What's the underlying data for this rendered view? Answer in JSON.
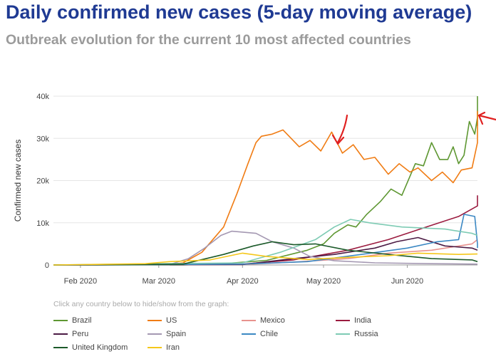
{
  "header": {
    "title": "Daily confirmed new cases (5-day moving average)",
    "subtitle": "Outbreak evolution for the current 10 most affected countries"
  },
  "hint": "Click any country below to hide/show from the graph:",
  "annotations": [
    "red-arrow-pointing-down",
    "red-arrow-pointing-left"
  ],
  "chart_data": {
    "type": "line",
    "title": "Daily confirmed new cases (5-day moving average)",
    "subtitle": "Outbreak evolution for the current 10 most affected countries",
    "xlabel": "",
    "ylabel": "Confirmed new cases",
    "x_ticks": [
      "Feb 2020",
      "Mar 2020",
      "Apr 2020",
      "May 2020",
      "Jun 2020"
    ],
    "y_ticks": [
      "0",
      "10k",
      "20k",
      "30k",
      "40k"
    ],
    "ylim": [
      0,
      40000
    ],
    "xlim": [
      "2020-01-22",
      "2020-06-27"
    ],
    "grid": true,
    "legend_position": "bottom",
    "series": [
      {
        "name": "Brazil",
        "color": "#5e9732",
        "points": [
          [
            "2020-01-22",
            0
          ],
          [
            "2020-03-10",
            0
          ],
          [
            "2020-03-25",
            300
          ],
          [
            "2020-04-10",
            1100
          ],
          [
            "2020-04-25",
            3500
          ],
          [
            "2020-05-01",
            5000
          ],
          [
            "2020-05-05",
            7500
          ],
          [
            "2020-05-10",
            9500
          ],
          [
            "2020-05-13",
            9000
          ],
          [
            "2020-05-17",
            12000
          ],
          [
            "2020-05-22",
            15000
          ],
          [
            "2020-05-26",
            18000
          ],
          [
            "2020-05-30",
            16500
          ],
          [
            "2020-06-04",
            24000
          ],
          [
            "2020-06-07",
            23500
          ],
          [
            "2020-06-10",
            29000
          ],
          [
            "2020-06-13",
            25000
          ],
          [
            "2020-06-16",
            25000
          ],
          [
            "2020-06-18",
            28000
          ],
          [
            "2020-06-20",
            24000
          ],
          [
            "2020-06-22",
            26000
          ],
          [
            "2020-06-24",
            34000
          ],
          [
            "2020-06-26",
            31000
          ],
          [
            "2020-06-28",
            35000
          ],
          [
            "2020-06-30",
            33000
          ],
          [
            "2020-07-02",
            40000
          ]
        ]
      },
      {
        "name": "US",
        "color": "#f07c14",
        "points": [
          [
            "2020-01-22",
            0
          ],
          [
            "2020-03-05",
            100
          ],
          [
            "2020-03-10",
            500
          ],
          [
            "2020-03-17",
            3000
          ],
          [
            "2020-03-25",
            9000
          ],
          [
            "2020-03-30",
            17000
          ],
          [
            "2020-04-03",
            24000
          ],
          [
            "2020-04-06",
            29000
          ],
          [
            "2020-04-08",
            30500
          ],
          [
            "2020-04-12",
            31000
          ],
          [
            "2020-04-16",
            32000
          ],
          [
            "2020-04-22",
            28000
          ],
          [
            "2020-04-26",
            29500
          ],
          [
            "2020-04-30",
            27000
          ],
          [
            "2020-05-04",
            31500
          ],
          [
            "2020-05-08",
            26500
          ],
          [
            "2020-05-12",
            28500
          ],
          [
            "2020-05-16",
            25000
          ],
          [
            "2020-05-20",
            25500
          ],
          [
            "2020-05-25",
            21500
          ],
          [
            "2020-05-29",
            24000
          ],
          [
            "2020-06-02",
            22000
          ],
          [
            "2020-06-05",
            23000
          ],
          [
            "2020-06-10",
            20000
          ],
          [
            "2020-06-14",
            22000
          ],
          [
            "2020-06-18",
            19500
          ],
          [
            "2020-06-21",
            22500
          ],
          [
            "2020-06-25",
            23000
          ],
          [
            "2020-06-28",
            29000
          ],
          [
            "2020-07-01",
            33000
          ],
          [
            "2020-07-03",
            36500
          ]
        ]
      },
      {
        "name": "Mexico",
        "color": "#e8928e",
        "points": [
          [
            "2020-01-22",
            0
          ],
          [
            "2020-04-01",
            100
          ],
          [
            "2020-04-20",
            700
          ],
          [
            "2020-05-10",
            1500
          ],
          [
            "2020-05-25",
            2800
          ],
          [
            "2020-06-10",
            3500
          ],
          [
            "2020-06-25",
            5000
          ],
          [
            "2020-07-03",
            6000
          ]
        ]
      },
      {
        "name": "India",
        "color": "#9b1b3f",
        "points": [
          [
            "2020-01-22",
            0
          ],
          [
            "2020-04-01",
            200
          ],
          [
            "2020-04-20",
            1200
          ],
          [
            "2020-05-10",
            3500
          ],
          [
            "2020-05-25",
            6000
          ],
          [
            "2020-06-08",
            9000
          ],
          [
            "2020-06-20",
            11500
          ],
          [
            "2020-06-28",
            14000
          ],
          [
            "2020-07-03",
            16500
          ]
        ]
      },
      {
        "name": "Peru",
        "color": "#4c1b44",
        "points": [
          [
            "2020-01-22",
            0
          ],
          [
            "2020-04-01",
            100
          ],
          [
            "2020-04-20",
            1500
          ],
          [
            "2020-05-05",
            2500
          ],
          [
            "2020-05-20",
            4000
          ],
          [
            "2020-05-28",
            5500
          ],
          [
            "2020-06-05",
            6500
          ],
          [
            "2020-06-15",
            4500
          ],
          [
            "2020-06-25",
            4000
          ],
          [
            "2020-07-03",
            3500
          ]
        ]
      },
      {
        "name": "Spain",
        "color": "#a498b2",
        "points": [
          [
            "2020-01-22",
            0
          ],
          [
            "2020-03-05",
            100
          ],
          [
            "2020-03-12",
            1500
          ],
          [
            "2020-03-18",
            4000
          ],
          [
            "2020-03-24",
            7000
          ],
          [
            "2020-03-28",
            8000
          ],
          [
            "2020-04-06",
            7500
          ],
          [
            "2020-04-12",
            5500
          ],
          [
            "2020-04-20",
            4000
          ],
          [
            "2020-04-26",
            2000
          ],
          [
            "2020-05-05",
            1000
          ],
          [
            "2020-05-20",
            500
          ],
          [
            "2020-06-10",
            300
          ],
          [
            "2020-07-03",
            200
          ]
        ]
      },
      {
        "name": "Chile",
        "color": "#3b88c3",
        "points": [
          [
            "2020-01-22",
            0
          ],
          [
            "2020-04-01",
            200
          ],
          [
            "2020-04-25",
            800
          ],
          [
            "2020-05-15",
            2500
          ],
          [
            "2020-06-01",
            4000
          ],
          [
            "2020-06-12",
            5500
          ],
          [
            "2020-06-20",
            6000
          ],
          [
            "2020-06-22",
            12000
          ],
          [
            "2020-06-26",
            11500
          ],
          [
            "2020-06-27",
            5000
          ],
          [
            "2020-07-03",
            4000
          ]
        ]
      },
      {
        "name": "Russia",
        "color": "#7ecbb4",
        "points": [
          [
            "2020-01-22",
            0
          ],
          [
            "2020-04-01",
            500
          ],
          [
            "2020-04-15",
            3000
          ],
          [
            "2020-04-28",
            6000
          ],
          [
            "2020-05-05",
            9000
          ],
          [
            "2020-05-11",
            10800
          ],
          [
            "2020-05-18",
            10000
          ],
          [
            "2020-05-30",
            9000
          ],
          [
            "2020-06-15",
            8500
          ],
          [
            "2020-06-25",
            7500
          ],
          [
            "2020-07-03",
            7000
          ]
        ]
      },
      {
        "name": "United Kingdom",
        "color": "#1c5a2a",
        "points": [
          [
            "2020-01-22",
            0
          ],
          [
            "2020-03-10",
            200
          ],
          [
            "2020-03-25",
            2500
          ],
          [
            "2020-04-05",
            4500
          ],
          [
            "2020-04-12",
            5500
          ],
          [
            "2020-04-20",
            4800
          ],
          [
            "2020-04-28",
            5000
          ],
          [
            "2020-05-10",
            3500
          ],
          [
            "2020-05-25",
            2500
          ],
          [
            "2020-06-10",
            1500
          ],
          [
            "2020-06-25",
            1200
          ],
          [
            "2020-07-03",
            800
          ]
        ]
      },
      {
        "name": "Iran",
        "color": "#f5c71a",
        "points": [
          [
            "2020-01-22",
            0
          ],
          [
            "2020-02-25",
            300
          ],
          [
            "2020-03-05",
            800
          ],
          [
            "2020-03-20",
            1200
          ],
          [
            "2020-04-01",
            2800
          ],
          [
            "2020-04-10",
            2000
          ],
          [
            "2020-04-25",
            1300
          ],
          [
            "2020-05-10",
            1800
          ],
          [
            "2020-05-25",
            2200
          ],
          [
            "2020-06-05",
            2800
          ],
          [
            "2020-06-20",
            2500
          ],
          [
            "2020-07-03",
            2600
          ]
        ]
      }
    ]
  }
}
